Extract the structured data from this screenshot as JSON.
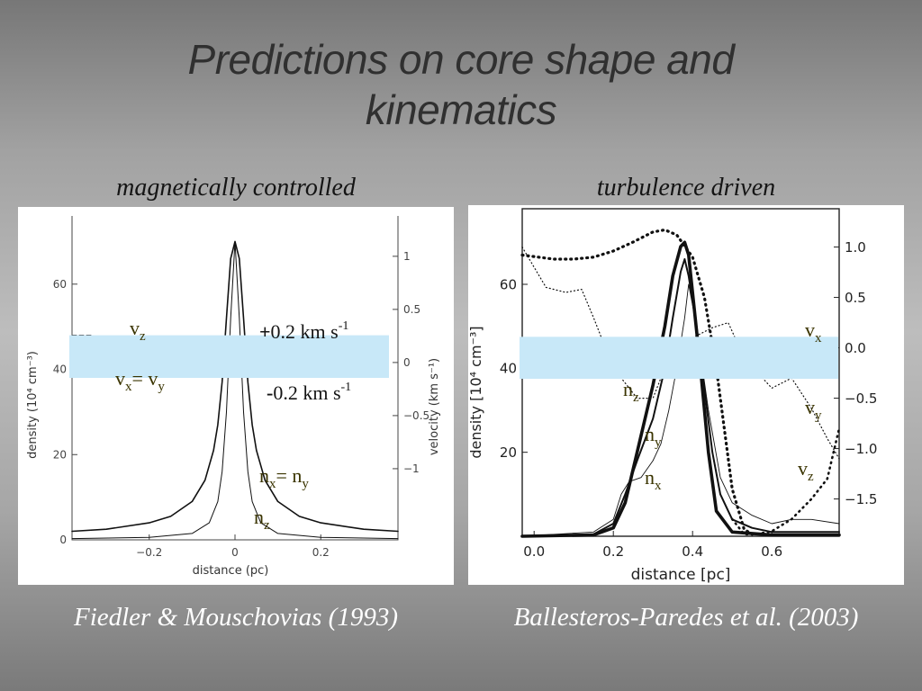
{
  "slide": {
    "title_line1": "Predictions on core shape and",
    "title_line2": "kinematics"
  },
  "left": {
    "subtitle": "magnetically controlled",
    "citation": "Fiedler & Mouschovias (1993)"
  },
  "right": {
    "subtitle": "turbulence driven",
    "citation": "Ballesteros-Paredes et al. (2003)"
  },
  "colors": {
    "overlay_band": "#c8e8f8",
    "annotation_text": "#3a3400",
    "title_text": "#303030",
    "citation_text": "#ffffff"
  },
  "chart_data": [
    {
      "type": "line",
      "xlabel": "distance (pc)",
      "ylabel": "density (10⁴ cm⁻³)",
      "y2label": "velocity (km s⁻¹)",
      "xlim": [
        -0.38,
        0.38
      ],
      "ylim": [
        0,
        76
      ],
      "y2lim": [
        -1.67,
        1.38
      ],
      "xticks": [
        -0.2,
        0,
        0.2
      ],
      "xtick_labels": [
        "−0.2",
        "0",
        "0.2"
      ],
      "yticks": [
        0,
        20,
        40,
        60
      ],
      "y2ticks": [
        -1,
        -0.5,
        0,
        0.5,
        1
      ],
      "y2tick_labels": [
        "−1",
        "−0.5",
        "0",
        "0.5",
        "1"
      ],
      "series": [
        {
          "name": "nx= ny",
          "width": 1.6,
          "x": [
            -0.38,
            -0.3,
            -0.2,
            -0.15,
            -0.1,
            -0.07,
            -0.05,
            -0.04,
            -0.03,
            -0.02,
            -0.01,
            0,
            0.01,
            0.02,
            0.03,
            0.04,
            0.05,
            0.07,
            0.1,
            0.15,
            0.2,
            0.3,
            0.38
          ],
          "y": [
            2,
            2.5,
            4,
            5.5,
            9,
            14,
            21,
            27,
            37,
            52,
            66,
            70,
            66,
            52,
            37,
            27,
            21,
            14,
            9,
            5.5,
            4,
            2.5,
            2
          ]
        },
        {
          "name": "nz",
          "width": 1.0,
          "x": [
            -0.38,
            -0.2,
            -0.1,
            -0.06,
            -0.04,
            -0.03,
            -0.02,
            -0.01,
            0,
            0.01,
            0.02,
            0.03,
            0.04,
            0.06,
            0.1,
            0.2,
            0.38
          ],
          "y": [
            0.3,
            0.6,
            1.5,
            4,
            9,
            16,
            30,
            52,
            70,
            52,
            30,
            16,
            9,
            4,
            1.5,
            0.6,
            0.3
          ]
        },
        {
          "name": "vz",
          "dashed": true,
          "width": 1.0,
          "x": [
            -0.38,
            -0.33
          ],
          "y": [
            48,
            48
          ]
        }
      ],
      "annotations": {
        "vz": "v",
        "vz_sub": "z",
        "plus_sign": "+",
        "plus_vel": "0.2 km s",
        "plus_sup": "-1",
        "vx_a": "v",
        "vx_a_sub": "x",
        "vx_eq": "= v",
        "vx_b_sub": "y",
        "minus_sign": "-",
        "minus_vel": "0.2 km s",
        "minus_sup": "-1",
        "nx_a": "n",
        "nx_a_sub": "x",
        "nx_eq": "= n",
        "nx_b_sub": "y",
        "nz": "n",
        "nz_sub": "z"
      },
      "overlay_band": {
        "y_from": 38,
        "y_to": 48
      }
    },
    {
      "type": "line",
      "xlabel": "distance [pc]",
      "ylabel": "density [10⁴ cm⁻³]",
      "xlim": [
        -0.03,
        0.77
      ],
      "ylim": [
        0,
        78
      ],
      "y2lim": [
        -1.87,
        1.38
      ],
      "xticks": [
        0.0,
        0.2,
        0.4,
        0.6
      ],
      "xtick_labels": [
        "0.0",
        "0.2",
        "0.4",
        "0.6"
      ],
      "yticks": [
        20,
        40,
        60
      ],
      "y2ticks": [
        -1.5,
        -1.0,
        -0.5,
        0.0,
        0.5,
        1.0
      ],
      "y2tick_labels": [
        "−1.5",
        "−1.0",
        "−0.5",
        "0.0",
        "0.5",
        "1.0"
      ],
      "series": [
        {
          "name": "nz",
          "width": 3.6,
          "x": [
            -0.03,
            0.15,
            0.2,
            0.23,
            0.26,
            0.3,
            0.33,
            0.35,
            0.37,
            0.38,
            0.39,
            0.4,
            0.42,
            0.44,
            0.46,
            0.5,
            0.6,
            0.77
          ],
          "y": [
            0,
            0.3,
            2,
            8,
            20,
            36,
            50,
            62,
            69,
            70,
            67,
            58,
            40,
            20,
            6,
            1,
            0.3,
            0.3
          ]
        },
        {
          "name": "ny",
          "width": 2.0,
          "x": [
            -0.03,
            0.15,
            0.2,
            0.23,
            0.26,
            0.3,
            0.33,
            0.35,
            0.37,
            0.38,
            0.39,
            0.41,
            0.43,
            0.45,
            0.47,
            0.5,
            0.55,
            0.6,
            0.77
          ],
          "y": [
            0,
            0.5,
            3,
            10,
            18,
            28,
            40,
            52,
            63,
            66,
            62,
            50,
            35,
            20,
            10,
            4,
            2,
            1,
            1
          ]
        },
        {
          "name": "nx",
          "width": 0.9,
          "x": [
            -0.03,
            0.15,
            0.2,
            0.22,
            0.24,
            0.27,
            0.3,
            0.32,
            0.34,
            0.36,
            0.38,
            0.39,
            0.41,
            0.44,
            0.47,
            0.5,
            0.55,
            0.6,
            0.65,
            0.7,
            0.77
          ],
          "y": [
            0,
            1,
            4,
            10,
            13,
            14,
            18,
            22,
            30,
            40,
            52,
            60,
            50,
            30,
            14,
            8,
            5,
            3,
            4,
            4,
            3
          ]
        },
        {
          "name": "vx",
          "dotted": true,
          "width": 3.2,
          "x": [
            -0.03,
            0.05,
            0.1,
            0.15,
            0.2,
            0.25,
            0.3,
            0.33,
            0.36,
            0.4,
            0.43,
            0.46,
            0.48,
            0.5,
            0.53,
            0.55
          ],
          "y2": [
            0.92,
            0.88,
            0.88,
            0.9,
            0.96,
            1.05,
            1.15,
            1.17,
            1.12,
            0.9,
            0.5,
            -0.2,
            -0.8,
            -1.4,
            -1.8,
            -1.85
          ]
        },
        {
          "name": "vy",
          "dotted": true,
          "width": 1.2,
          "x": [
            -0.03,
            0.03,
            0.08,
            0.12,
            0.15,
            0.2,
            0.26,
            0.3,
            0.35,
            0.4,
            0.45,
            0.49,
            0.53,
            0.6,
            0.65,
            0.7,
            0.74,
            0.77
          ],
          "y2": [
            1.0,
            0.6,
            0.55,
            0.58,
            0.3,
            -0.2,
            -0.5,
            -0.5,
            0.0,
            0.1,
            0.2,
            0.25,
            -0.1,
            -0.4,
            -0.3,
            -0.6,
            -0.9,
            -1.1
          ]
        },
        {
          "name": "vz",
          "dotted": true,
          "width": 2.6,
          "x": [
            0.5,
            0.53,
            0.56,
            0.6,
            0.65,
            0.7,
            0.74,
            0.77
          ],
          "y2": [
            -1.7,
            -1.85,
            -1.85,
            -1.82,
            -1.7,
            -1.5,
            -1.3,
            -0.8
          ]
        }
      ],
      "annotations": {
        "vx": "v",
        "vx_sub": "x",
        "nz": "n",
        "nz_sub": "z",
        "vy": "v",
        "vy_sub": "y",
        "ny": "n",
        "ny_sub": "y",
        "vz": "v",
        "vz_sub": "z",
        "nx": "n",
        "nx_sub": "x"
      },
      "overlay_band": {
        "y_from": 37.5,
        "y_to": 47.5
      }
    }
  ]
}
